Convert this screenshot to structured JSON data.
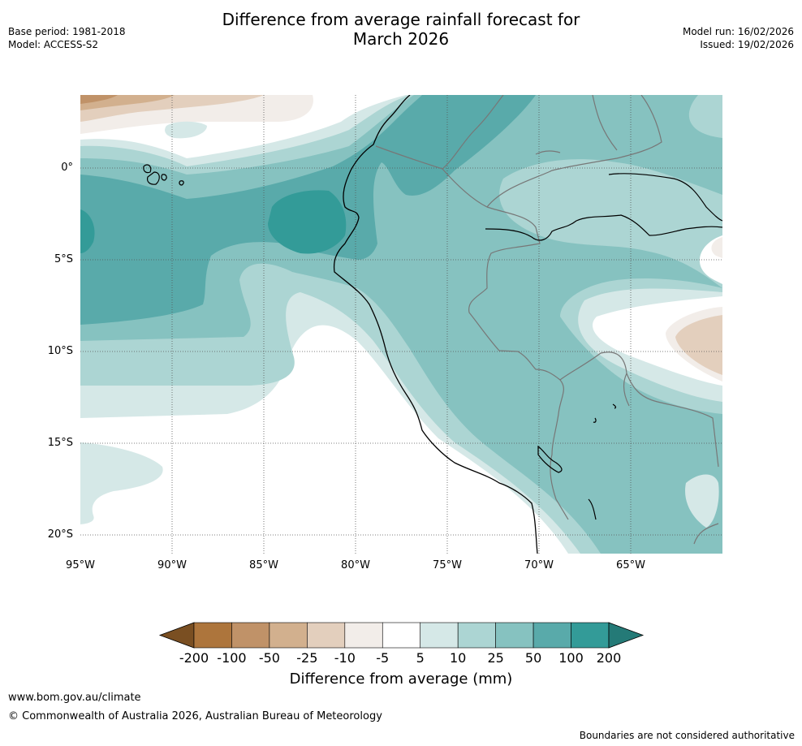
{
  "title_line1": "Difference from average rainfall forecast for",
  "title_line2": "March 2026",
  "base_period": "Base period: 1981-2018",
  "model": "Model: ACCESS-S2",
  "model_run": "Model run: 16/02/2026",
  "issued": "Issued: 19/02/2026",
  "lat_labels": [
    "0°",
    "5°S",
    "10°S",
    "15°S",
    "20°S"
  ],
  "lon_labels": [
    "95°W",
    "90°W",
    "85°W",
    "80°W",
    "75°W",
    "70°W",
    "65°W"
  ],
  "colorbar": {
    "title": "Difference from average (mm)",
    "tick_labels": [
      "-200",
      "-100",
      "-50",
      "-25",
      "-10",
      "-5",
      "5",
      "10",
      "25",
      "50",
      "100",
      "200"
    ],
    "colors": [
      "#7a4f22",
      "#ad753c",
      "#c09268",
      "#d2b08e",
      "#e3cfbd",
      "#f2ede9",
      "#ffffff",
      "#d5e8e7",
      "#acd5d3",
      "#86c2c0",
      "#59aaaa",
      "#339b98",
      "#247a77"
    ]
  },
  "website": "www.bom.gov.au/climate",
  "copyright": "© Commonwealth of Australia 2026, Australian Bureau of Meteorology",
  "disclaimer": "Boundaries are not considered authoritative"
}
